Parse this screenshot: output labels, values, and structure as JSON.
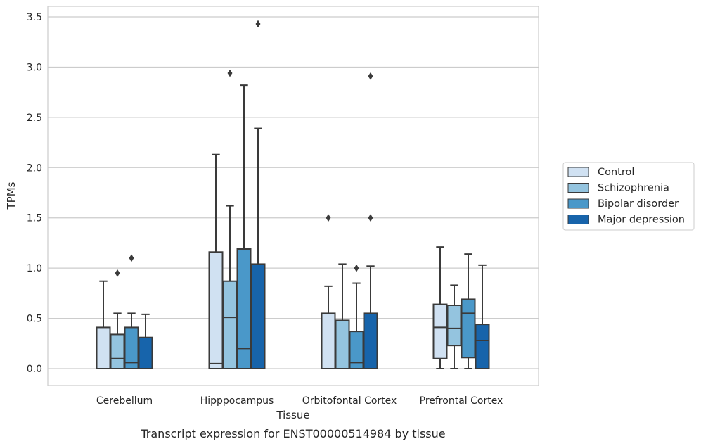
{
  "chart_data": {
    "type": "box",
    "title": "",
    "caption": "Transcript expression for ENST00000514984 by tissue",
    "xlabel": "Tissue",
    "ylabel": "TPMs",
    "ylim": [
      -0.17,
      3.6
    ],
    "yticks": [
      "0.0",
      "0.5",
      "1.0",
      "1.5",
      "2.0",
      "2.5",
      "3.0",
      "3.5"
    ],
    "grid": "horizontal",
    "legend_position": "right",
    "categories": [
      "Cerebellum",
      "Hipppocampus",
      "Orbitofontal Cortex",
      "Prefrontal Cortex"
    ],
    "series": [
      {
        "name": "Control",
        "color": "#d0e1f2",
        "boxes": [
          {
            "whislo": 0.0,
            "q1": 0.0,
            "med": 0.0,
            "q3": 0.41,
            "whishi": 0.87,
            "fliers": []
          },
          {
            "whislo": 0.0,
            "q1": 0.0,
            "med": 0.05,
            "q3": 1.16,
            "whishi": 2.13,
            "fliers": []
          },
          {
            "whislo": 0.0,
            "q1": 0.0,
            "med": 0.0,
            "q3": 0.55,
            "whishi": 0.82,
            "fliers": [
              1.5
            ]
          },
          {
            "whislo": 0.0,
            "q1": 0.1,
            "med": 0.41,
            "q3": 0.64,
            "whishi": 1.21,
            "fliers": []
          }
        ]
      },
      {
        "name": "Schizophrenia",
        "color": "#94c4df",
        "boxes": [
          {
            "whislo": 0.0,
            "q1": 0.0,
            "med": 0.1,
            "q3": 0.34,
            "whishi": 0.55,
            "fliers": [
              0.95
            ]
          },
          {
            "whislo": 0.0,
            "q1": 0.0,
            "med": 0.51,
            "q3": 0.87,
            "whishi": 1.62,
            "fliers": [
              2.94
            ]
          },
          {
            "whislo": 0.0,
            "q1": 0.0,
            "med": 0.0,
            "q3": 0.48,
            "whishi": 1.04,
            "fliers": []
          },
          {
            "whislo": 0.0,
            "q1": 0.23,
            "med": 0.4,
            "q3": 0.63,
            "whishi": 0.83,
            "fliers": []
          }
        ]
      },
      {
        "name": "Bipolar disorder",
        "color": "#4a98c9",
        "boxes": [
          {
            "whislo": 0.0,
            "q1": 0.0,
            "med": 0.06,
            "q3": 0.41,
            "whishi": 0.55,
            "fliers": [
              1.1
            ]
          },
          {
            "whislo": 0.0,
            "q1": 0.0,
            "med": 0.2,
            "q3": 1.19,
            "whishi": 2.82,
            "fliers": []
          },
          {
            "whislo": 0.0,
            "q1": 0.0,
            "med": 0.06,
            "q3": 0.37,
            "whishi": 0.85,
            "fliers": [
              1.0
            ]
          },
          {
            "whislo": 0.0,
            "q1": 0.11,
            "med": 0.55,
            "q3": 0.69,
            "whishi": 1.14,
            "fliers": []
          }
        ]
      },
      {
        "name": "Major depression",
        "color": "#1764ab",
        "boxes": [
          {
            "whislo": 0.0,
            "q1": 0.0,
            "med": 0.0,
            "q3": 0.31,
            "whishi": 0.54,
            "fliers": []
          },
          {
            "whislo": 0.0,
            "q1": 0.0,
            "med": 0.0,
            "q3": 1.04,
            "whishi": 2.39,
            "fliers": [
              3.43
            ]
          },
          {
            "whislo": 0.0,
            "q1": 0.0,
            "med": 0.0,
            "q3": 0.55,
            "whishi": 1.02,
            "fliers": [
              1.5,
              2.91
            ]
          },
          {
            "whislo": 0.0,
            "q1": 0.0,
            "med": 0.28,
            "q3": 0.44,
            "whishi": 1.03,
            "fliers": []
          }
        ]
      }
    ],
    "line_color": "#3a3a3a",
    "grid_color": "#cccccc",
    "frame_color": "#cccccc"
  }
}
